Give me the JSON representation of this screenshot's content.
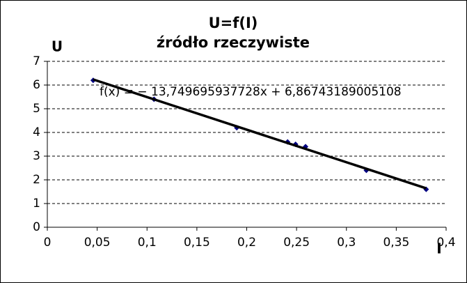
{
  "chart_data": {
    "type": "scatter",
    "title": "U=f(I)",
    "subtitle": "źródło rzeczywiste",
    "x_label": "I",
    "y_label": "U",
    "x": [
      0.046,
      0.107,
      0.19,
      0.241,
      0.249,
      0.259,
      0.32,
      0.38
    ],
    "values": [
      6.2,
      5.4,
      4.2,
      3.6,
      3.5,
      3.4,
      2.4,
      1.6
    ],
    "color": "#000080",
    "trendline": {
      "label": "f(x) = − 13,749695937728x + 6,86743189005108",
      "slope": -13.749695937728,
      "intercept": 6.86743189005108,
      "color": "#000000"
    },
    "xlim": [
      0,
      0.4
    ],
    "xticks": [
      0,
      {
        "value": 0.05,
        "label": "0,05"
      },
      {
        "value": 0.1,
        "label": "0,1"
      },
      {
        "value": 0.15,
        "label": "0,15"
      },
      {
        "value": 0.2,
        "label": "0,2"
      },
      {
        "value": 0.25,
        "label": "0,25"
      },
      {
        "value": 0.3,
        "label": "0,3"
      },
      {
        "value": 0.35,
        "label": "0,35"
      },
      {
        "value": 0.4,
        "label": "0,4"
      }
    ],
    "ylim": [
      0,
      7
    ],
    "yticks": [
      0,
      1,
      2,
      3,
      4,
      5,
      6,
      7
    ],
    "grid": true
  }
}
